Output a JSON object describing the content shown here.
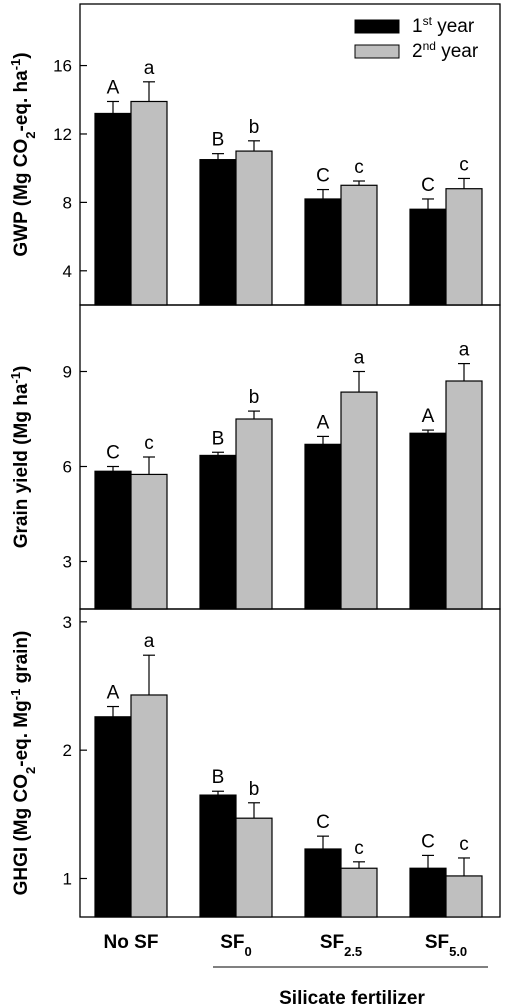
{
  "chart_data": [
    {
      "type": "bar",
      "panel": "GWP",
      "ylabel": "GWP (Mg CO2-eq. ha-1)",
      "ylabel_parts": [
        {
          "t": "GWP (Mg CO",
          "s": "n"
        },
        {
          "t": "2",
          "s": "sub"
        },
        {
          "t": "-eq. ha",
          "s": "n"
        },
        {
          "t": "-1",
          "s": "sup"
        },
        {
          "t": ")",
          "s": "n"
        }
      ],
      "ylim": [
        2,
        19.6
      ],
      "yticks": [
        "4",
        "8",
        "12",
        "16"
      ],
      "ytick_values": [
        4,
        8,
        12,
        16
      ],
      "categories": [
        "No SF",
        "SF0",
        "SF2.5",
        "SF5.0"
      ],
      "series": [
        {
          "name": "1st year",
          "values": [
            13.2,
            10.5,
            8.2,
            7.6
          ],
          "errors": [
            0.7,
            0.35,
            0.55,
            0.6
          ],
          "letters": [
            "A",
            "B",
            "C",
            "C"
          ]
        },
        {
          "name": "2nd year",
          "values": [
            13.9,
            11.0,
            9.0,
            8.8
          ],
          "errors": [
            1.15,
            0.6,
            0.25,
            0.6
          ],
          "letters": [
            "a",
            "b",
            "c",
            "c"
          ]
        }
      ]
    },
    {
      "type": "bar",
      "panel": "Grain yield",
      "ylabel": "Grain yield (Mg ha-1)",
      "ylabel_parts": [
        {
          "t": "Grain yield (Mg ha",
          "s": "n"
        },
        {
          "t": "-1",
          "s": "sup"
        },
        {
          "t": ")",
          "s": "n"
        }
      ],
      "ylim": [
        1.5,
        11.1
      ],
      "yticks": [
        "3",
        "6",
        "9"
      ],
      "ytick_values": [
        3,
        6,
        9
      ],
      "categories": [
        "No SF",
        "SF0",
        "SF2.5",
        "SF5.0"
      ],
      "series": [
        {
          "name": "1st year",
          "values": [
            5.85,
            6.35,
            6.7,
            7.05
          ],
          "errors": [
            0.15,
            0.1,
            0.25,
            0.1
          ],
          "letters": [
            "C",
            "B",
            "A",
            "A"
          ]
        },
        {
          "name": "2nd year",
          "values": [
            5.75,
            7.5,
            8.35,
            8.7
          ],
          "errors": [
            0.55,
            0.25,
            0.65,
            0.55
          ],
          "letters": [
            "c",
            "b",
            "a",
            "a"
          ]
        }
      ]
    },
    {
      "type": "bar",
      "panel": "GHGI",
      "ylabel": "GHGI (Mg CO2-eq. Mg-1 grain)",
      "ylabel_parts": [
        {
          "t": "GHGI (Mg CO",
          "s": "n"
        },
        {
          "t": "2",
          "s": "sub"
        },
        {
          "t": "-eq. Mg",
          "s": "n"
        },
        {
          "t": "-1",
          "s": "sup"
        },
        {
          "t": " grain)",
          "s": "n"
        }
      ],
      "ylim": [
        0.7,
        3.1
      ],
      "yticks": [
        "1",
        "2",
        "3"
      ],
      "ytick_values": [
        1,
        2,
        3
      ],
      "categories": [
        "No SF",
        "SF0",
        "SF2.5",
        "SF5.0"
      ],
      "series": [
        {
          "name": "1st year",
          "values": [
            2.26,
            1.65,
            1.23,
            1.08
          ],
          "errors": [
            0.08,
            0.03,
            0.1,
            0.1
          ],
          "letters": [
            "A",
            "B",
            "C",
            "C"
          ]
        },
        {
          "name": "2nd year",
          "values": [
            2.43,
            1.47,
            1.08,
            1.02
          ],
          "errors": [
            0.31,
            0.12,
            0.05,
            0.14
          ],
          "letters": [
            "a",
            "b",
            "c",
            "c"
          ]
        }
      ]
    }
  ],
  "legend": [
    {
      "main": "1",
      "sup": "st",
      "rest": " year",
      "color": "#000000"
    },
    {
      "main": "2",
      "sup": "nd",
      "rest": " year",
      "color": "#bfbfbf"
    }
  ],
  "x_categories": [
    {
      "main": "No SF",
      "sub": ""
    },
    {
      "main": "SF",
      "sub": "0"
    },
    {
      "main": "SF",
      "sub": "2.5"
    },
    {
      "main": "SF",
      "sub": "5.0"
    }
  ],
  "x_title": "Silicate fertilizer",
  "colors": {
    "year1": "#000000",
    "year2": "#bfbfbf",
    "axis": "#000000"
  }
}
